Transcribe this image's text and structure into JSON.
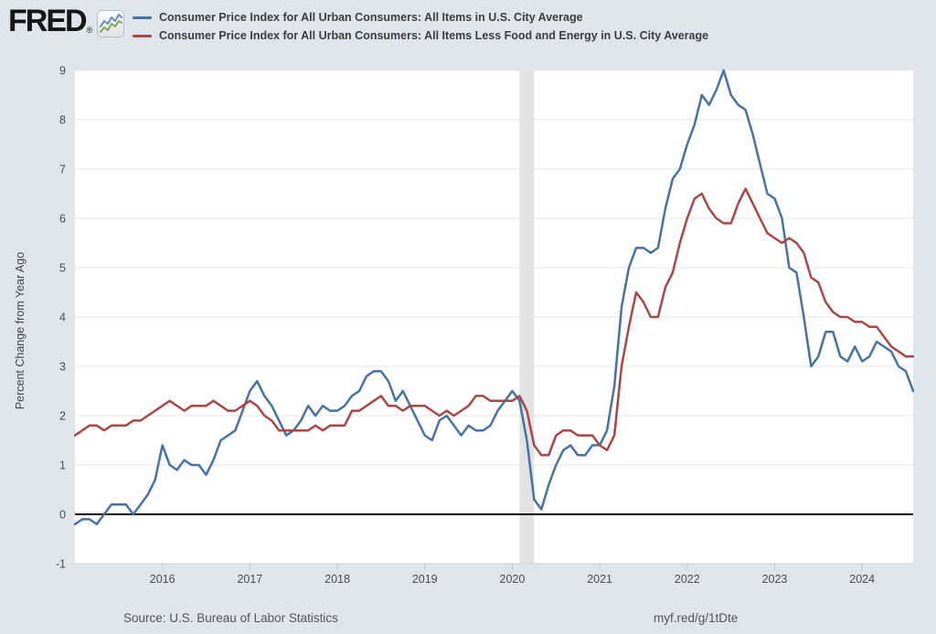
{
  "header": {
    "logo_text": "FRED",
    "registered_mark": "®",
    "legend": [
      {
        "label": "Consumer Price Index for All Urban Consumers: All Items in U.S. City Average",
        "color": "#4572a7"
      },
      {
        "label": "Consumer Price Index for All Urban Consumers: All Items Less Food and Energy in U.S. City Average",
        "color": "#aa4643"
      }
    ]
  },
  "footer": {
    "source": "Source: U.S. Bureau of Labor Statistics",
    "link": "myf.red/g/1tDte"
  },
  "chart_data": {
    "type": "line",
    "title": "",
    "xlabel": "",
    "ylabel": "Percent Change from Year Ago",
    "ylim": [
      -1,
      9
    ],
    "yticks": [
      -1,
      0,
      1,
      2,
      3,
      4,
      5,
      6,
      7,
      8,
      9
    ],
    "xticks": [
      "2016",
      "2017",
      "2018",
      "2019",
      "2020",
      "2021",
      "2022",
      "2023",
      "2024"
    ],
    "x_range": [
      "2015-01",
      "2024-08"
    ],
    "frequency": "monthly",
    "grid": "horizontal",
    "legend_position": "top",
    "zero_line": true,
    "plot_bg": "#ffffff",
    "page_bg": "#dfe5ec",
    "recession_bands": [
      {
        "start": "2020-02",
        "end": "2020-04",
        "color": "#e2e2e2"
      }
    ],
    "series": [
      {
        "id": "cpi-all-items",
        "name": "Consumer Price Index for All Urban Consumers: All Items in U.S. City Average",
        "color": "#4572a7",
        "values": [
          -0.2,
          -0.1,
          -0.1,
          -0.2,
          0.0,
          0.2,
          0.2,
          0.2,
          0.0,
          0.2,
          0.4,
          0.7,
          1.4,
          1.0,
          0.9,
          1.1,
          1.0,
          1.0,
          0.8,
          1.1,
          1.5,
          1.6,
          1.7,
          2.1,
          2.5,
          2.7,
          2.4,
          2.2,
          1.9,
          1.6,
          1.7,
          1.9,
          2.2,
          2.0,
          2.2,
          2.1,
          2.1,
          2.2,
          2.4,
          2.5,
          2.8,
          2.9,
          2.9,
          2.7,
          2.3,
          2.5,
          2.2,
          1.9,
          1.6,
          1.5,
          1.9,
          2.0,
          1.8,
          1.6,
          1.8,
          1.7,
          1.7,
          1.8,
          2.1,
          2.3,
          2.5,
          2.3,
          1.5,
          0.3,
          0.1,
          0.6,
          1.0,
          1.3,
          1.4,
          1.2,
          1.2,
          1.4,
          1.4,
          1.7,
          2.6,
          4.2,
          5.0,
          5.4,
          5.4,
          5.3,
          5.4,
          6.2,
          6.8,
          7.0,
          7.5,
          7.9,
          8.5,
          8.3,
          8.6,
          9.0,
          8.5,
          8.3,
          8.2,
          7.7,
          7.1,
          6.5,
          6.4,
          6.0,
          5.0,
          4.9,
          4.0,
          3.0,
          3.2,
          3.7,
          3.7,
          3.2,
          3.1,
          3.4,
          3.1,
          3.2,
          3.5,
          3.4,
          3.3,
          3.0,
          2.9,
          2.5
        ]
      },
      {
        "id": "cpi-core",
        "name": "Consumer Price Index for All Urban Consumers: All Items Less Food and Energy in U.S. City Average",
        "color": "#aa4643",
        "values": [
          1.6,
          1.7,
          1.8,
          1.8,
          1.7,
          1.8,
          1.8,
          1.8,
          1.9,
          1.9,
          2.0,
          2.1,
          2.2,
          2.3,
          2.2,
          2.1,
          2.2,
          2.2,
          2.2,
          2.3,
          2.2,
          2.1,
          2.1,
          2.2,
          2.3,
          2.2,
          2.0,
          1.9,
          1.7,
          1.7,
          1.7,
          1.7,
          1.7,
          1.8,
          1.7,
          1.8,
          1.8,
          1.8,
          2.1,
          2.1,
          2.2,
          2.3,
          2.4,
          2.2,
          2.2,
          2.1,
          2.2,
          2.2,
          2.2,
          2.1,
          2.0,
          2.1,
          2.0,
          2.1,
          2.2,
          2.4,
          2.4,
          2.3,
          2.3,
          2.3,
          2.3,
          2.4,
          2.1,
          1.4,
          1.2,
          1.2,
          1.6,
          1.7,
          1.7,
          1.6,
          1.6,
          1.6,
          1.4,
          1.3,
          1.6,
          3.0,
          3.8,
          4.5,
          4.3,
          4.0,
          4.0,
          4.6,
          4.9,
          5.5,
          6.0,
          6.4,
          6.5,
          6.2,
          6.0,
          5.9,
          5.9,
          6.3,
          6.6,
          6.3,
          6.0,
          5.7,
          5.6,
          5.5,
          5.6,
          5.5,
          5.3,
          4.8,
          4.7,
          4.3,
          4.1,
          4.0,
          4.0,
          3.9,
          3.9,
          3.8,
          3.8,
          3.6,
          3.4,
          3.3,
          3.2,
          3.2
        ]
      }
    ]
  }
}
